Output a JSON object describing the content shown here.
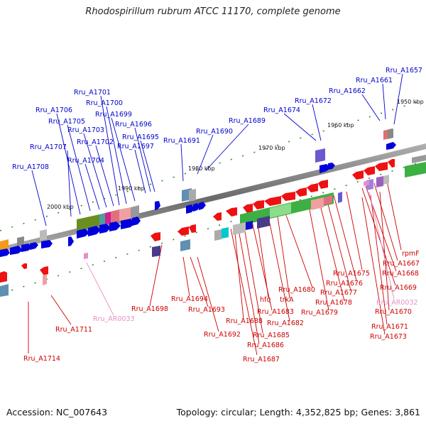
{
  "header": {
    "title": "Rhodospirillum rubrum ATCC 11170, complete genome"
  },
  "footer": {
    "accession": "Accession: NC_007643",
    "summary": "Topology: circular; Length: 4,352,825 bp; Genes: 3,861"
  },
  "colors": {
    "forward_label": "#0000cc",
    "reverse_label": "#cc0000",
    "rna_label": "#e58fc6",
    "backbone": "#777777"
  },
  "scale_ticks": [
    "1950 kbp",
    "1960 kbp",
    "1970 kbp",
    "1980 kbp",
    "1990 kbp",
    "2000 kbp"
  ],
  "forward_genes": [
    "Rru_A1657",
    "Rru_A1661",
    "Rru_A1662",
    "Rru_A1672",
    "Rru_A1674",
    "Rru_A1689",
    "Rru_A1690",
    "Rru_A1691",
    "Rru_A1695",
    "Rru_A1696",
    "Rru_A1697",
    "Rru_A1699",
    "Rru_A1700",
    "Rru_A1701",
    "Rru_A1702",
    "Rru_A1703",
    "Rru_A1704",
    "Rru_A1705",
    "Rru_A1706",
    "Rru_A1707",
    "Rru_A1708"
  ],
  "reverse_genes": [
    "rpmF",
    "Rru_A1667",
    "Rru_A1668",
    "Rru_A1669",
    "Rru_AR0032",
    "Rru_A1670",
    "Rru_A1671",
    "Rru_A1673",
    "Rru_A1675",
    "Rru_A1676",
    "Rru_A1677",
    "Rru_A1678",
    "Rru_A1679",
    "Rru_A1680",
    "trkA",
    "Rru_A1682",
    "hfq",
    "Rru_A1683",
    "Rru_A1688",
    "Rru_A1685",
    "Rru_A1686",
    "Rru_A1687",
    "Rru_A1692",
    "Rru_A1693",
    "Rru_A1694",
    "Rru_A1698",
    "Rru_AR0033",
    "Rru_A1711",
    "Rru_A1714"
  ]
}
